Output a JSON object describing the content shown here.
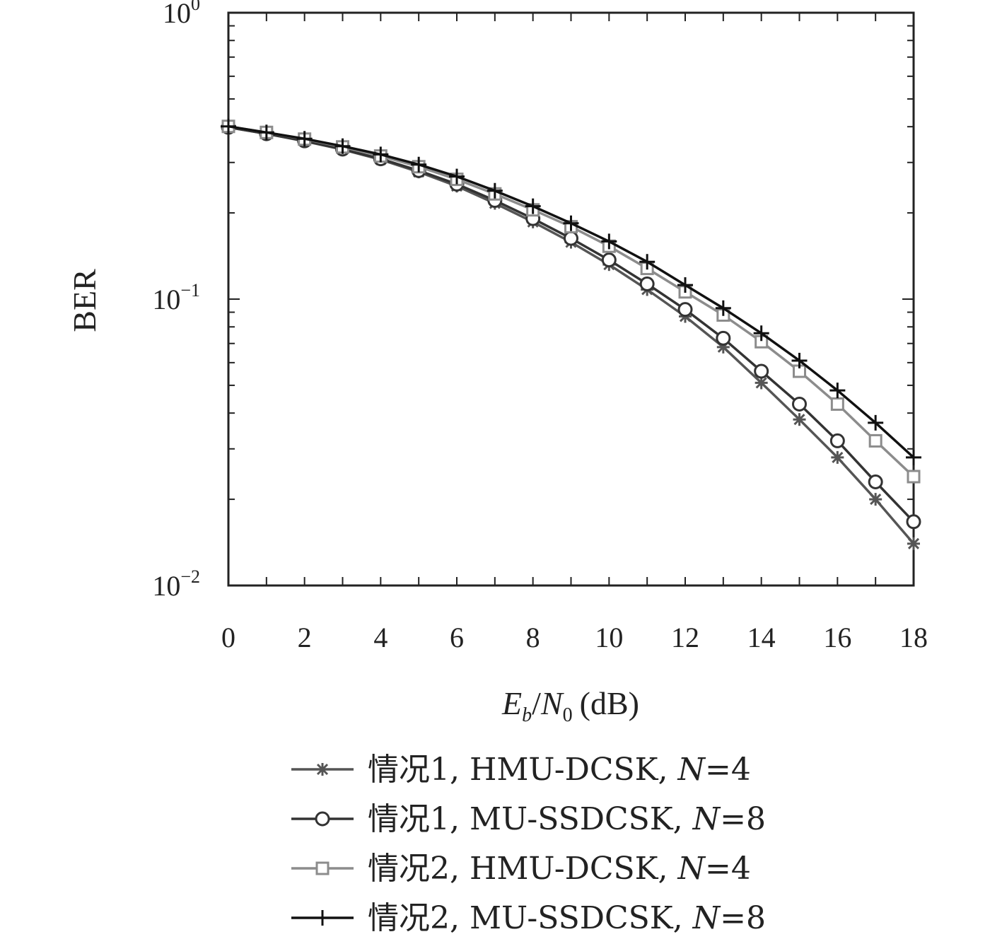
{
  "chart_data": {
    "type": "line",
    "title": "",
    "xlabel": "E_b/N_0 (dB)",
    "xlabel_parts": {
      "E": "E",
      "b": "b",
      "slash": "/",
      "N": "N",
      "zero": "0",
      "unit": "(dB)"
    },
    "ylabel": "BER",
    "xlim": [
      0,
      18
    ],
    "ylim": [
      0.01,
      1
    ],
    "yscale": "log",
    "xticks": [
      "0",
      "2",
      "4",
      "6",
      "8",
      "10",
      "12",
      "14",
      "16",
      "18"
    ],
    "yticks": [
      {
        "base": "10",
        "exp": "0"
      },
      {
        "base": "10",
        "exp": "−1"
      },
      {
        "base": "10",
        "exp": "−2"
      }
    ],
    "grid": false,
    "legend_position": "bottom",
    "x": [
      0,
      1,
      2,
      3,
      4,
      5,
      6,
      7,
      8,
      9,
      10,
      11,
      12,
      13,
      14,
      15,
      16,
      17,
      18
    ],
    "series": [
      {
        "name": "情况1, HMU-DCSK, N=4",
        "name_parts": {
          "pre": "情况1, HMU-DCSK, ",
          "N": "N",
          "post": "=4"
        },
        "marker": "asterisk",
        "color": "#555555",
        "values": [
          0.398,
          0.378,
          0.356,
          0.333,
          0.307,
          0.278,
          0.248,
          0.216,
          0.186,
          0.158,
          0.132,
          0.108,
          0.087,
          0.068,
          0.051,
          0.038,
          0.028,
          0.02,
          0.014
        ]
      },
      {
        "name": "情况1, MU-SSDCSK, N=8",
        "name_parts": {
          "pre": "情况1, MU-SSDCSK, ",
          "N": "N",
          "post": "=8"
        },
        "marker": "circle",
        "color": "#333333",
        "values": [
          0.398,
          0.378,
          0.357,
          0.334,
          0.309,
          0.281,
          0.252,
          0.221,
          0.191,
          0.163,
          0.137,
          0.113,
          0.092,
          0.073,
          0.056,
          0.043,
          0.032,
          0.023,
          0.0167
        ]
      },
      {
        "name": "情况2, HMU-DCSK, N=4",
        "name_parts": {
          "pre": "情况2, HMU-DCSK, ",
          "N": "N",
          "post": "=4"
        },
        "marker": "square",
        "color": "#8c8c8c",
        "values": [
          0.401,
          0.382,
          0.362,
          0.34,
          0.316,
          0.29,
          0.262,
          0.233,
          0.205,
          0.179,
          0.153,
          0.128,
          0.106,
          0.088,
          0.071,
          0.056,
          0.043,
          0.032,
          0.024
        ]
      },
      {
        "name": "情况2, MU-SSDCSK, N=8",
        "name_parts": {
          "pre": "情况2, MU-SSDCSK, ",
          "N": "N",
          "post": "=8"
        },
        "marker": "plus",
        "color": "#111111",
        "values": [
          0.401,
          0.382,
          0.363,
          0.342,
          0.32,
          0.295,
          0.268,
          0.239,
          0.211,
          0.184,
          0.159,
          0.135,
          0.112,
          0.093,
          0.076,
          0.061,
          0.048,
          0.037,
          0.028
        ]
      }
    ]
  }
}
